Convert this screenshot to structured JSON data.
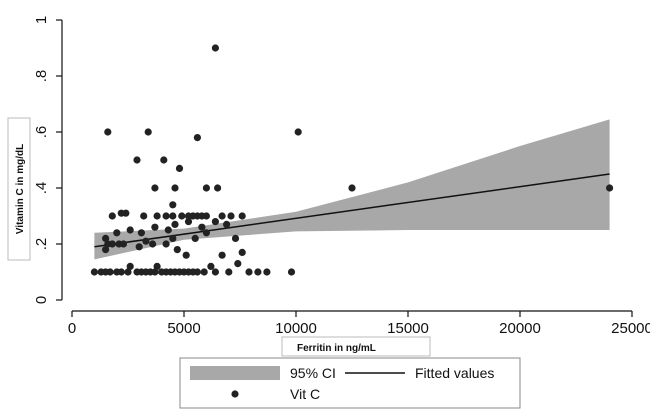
{
  "chart_data": {
    "type": "scatter",
    "title": "",
    "xlabel": "Ferritin in ng/mL",
    "ylabel": "Vitamin C in mg/dL",
    "xlim": [
      0,
      25000
    ],
    "ylim": [
      0,
      1
    ],
    "x_ticks": [
      0,
      5000,
      10000,
      15000,
      20000,
      25000
    ],
    "x_tick_labels": [
      "0",
      "5000",
      "10000",
      "15000",
      "20000",
      "25000"
    ],
    "y_ticks": [
      0,
      0.2,
      0.4,
      0.6,
      0.8,
      1
    ],
    "y_tick_labels": [
      "0",
      ".2",
      ".4",
      ".6",
      ".8",
      "1"
    ],
    "grid": false,
    "legend_position": "bottom",
    "legend": {
      "ci_label": "95% CI",
      "fit_label": "Fitted values",
      "points_label": "Vit C"
    },
    "colors": {
      "ci_band": "#a8a8a8",
      "fit_line": "#111111",
      "points": "#222222"
    },
    "fitted_line": {
      "x": [
        1000,
        24000
      ],
      "y": [
        0.19,
        0.45
      ]
    },
    "ci_band": {
      "x": [
        1000,
        5000,
        10000,
        15000,
        20000,
        24000
      ],
      "lower": [
        0.145,
        0.215,
        0.245,
        0.25,
        0.25,
        0.25
      ],
      "upper": [
        0.24,
        0.255,
        0.315,
        0.42,
        0.55,
        0.645
      ]
    },
    "series": [
      {
        "name": "Vit C",
        "points": [
          [
            1000,
            0.1
          ],
          [
            1300,
            0.1
          ],
          [
            1500,
            0.1
          ],
          [
            1700,
            0.1
          ],
          [
            2000,
            0.1
          ],
          [
            2200,
            0.1
          ],
          [
            2500,
            0.1
          ],
          [
            2600,
            0.12
          ],
          [
            2900,
            0.1
          ],
          [
            3100,
            0.1
          ],
          [
            3300,
            0.1
          ],
          [
            3500,
            0.1
          ],
          [
            3700,
            0.1
          ],
          [
            3800,
            0.12
          ],
          [
            4000,
            0.1
          ],
          [
            4200,
            0.1
          ],
          [
            4400,
            0.1
          ],
          [
            4600,
            0.1
          ],
          [
            4800,
            0.1
          ],
          [
            5000,
            0.1
          ],
          [
            5200,
            0.1
          ],
          [
            5400,
            0.1
          ],
          [
            5600,
            0.1
          ],
          [
            5900,
            0.1
          ],
          [
            6200,
            0.12
          ],
          [
            6400,
            0.1
          ],
          [
            7000,
            0.1
          ],
          [
            7400,
            0.13
          ],
          [
            7900,
            0.1
          ],
          [
            8300,
            0.1
          ],
          [
            8700,
            0.1
          ],
          [
            9800,
            0.1
          ],
          [
            1500,
            0.18
          ],
          [
            1600,
            0.2
          ],
          [
            1800,
            0.2
          ],
          [
            2100,
            0.2
          ],
          [
            2300,
            0.2
          ],
          [
            3000,
            0.19
          ],
          [
            3300,
            0.21
          ],
          [
            3600,
            0.2
          ],
          [
            4200,
            0.2
          ],
          [
            4500,
            0.22
          ],
          [
            4700,
            0.18
          ],
          [
            5100,
            0.16
          ],
          [
            5500,
            0.22
          ],
          [
            6000,
            0.24
          ],
          [
            6700,
            0.16
          ],
          [
            7300,
            0.22
          ],
          [
            7600,
            0.17
          ],
          [
            1500,
            0.22
          ],
          [
            2000,
            0.24
          ],
          [
            2600,
            0.25
          ],
          [
            3100,
            0.24
          ],
          [
            3700,
            0.26
          ],
          [
            4300,
            0.25
          ],
          [
            4600,
            0.27
          ],
          [
            5200,
            0.28
          ],
          [
            5800,
            0.26
          ],
          [
            6400,
            0.28
          ],
          [
            6900,
            0.27
          ],
          [
            1800,
            0.3
          ],
          [
            2200,
            0.31
          ],
          [
            2400,
            0.31
          ],
          [
            3200,
            0.3
          ],
          [
            3800,
            0.3
          ],
          [
            4200,
            0.3
          ],
          [
            4500,
            0.3
          ],
          [
            4900,
            0.3
          ],
          [
            5200,
            0.3
          ],
          [
            5400,
            0.3
          ],
          [
            5600,
            0.3
          ],
          [
            5800,
            0.3
          ],
          [
            6000,
            0.3
          ],
          [
            6700,
            0.3
          ],
          [
            7100,
            0.3
          ],
          [
            7600,
            0.3
          ],
          [
            4500,
            0.34
          ],
          [
            3700,
            0.4
          ],
          [
            4600,
            0.4
          ],
          [
            6000,
            0.4
          ],
          [
            6500,
            0.4
          ],
          [
            4800,
            0.47
          ],
          [
            2900,
            0.5
          ],
          [
            4100,
            0.5
          ],
          [
            1600,
            0.6
          ],
          [
            3400,
            0.6
          ],
          [
            5600,
            0.58
          ],
          [
            10100,
            0.6
          ],
          [
            12500,
            0.4
          ],
          [
            24000,
            0.4
          ],
          [
            6400,
            0.9
          ]
        ]
      }
    ]
  }
}
